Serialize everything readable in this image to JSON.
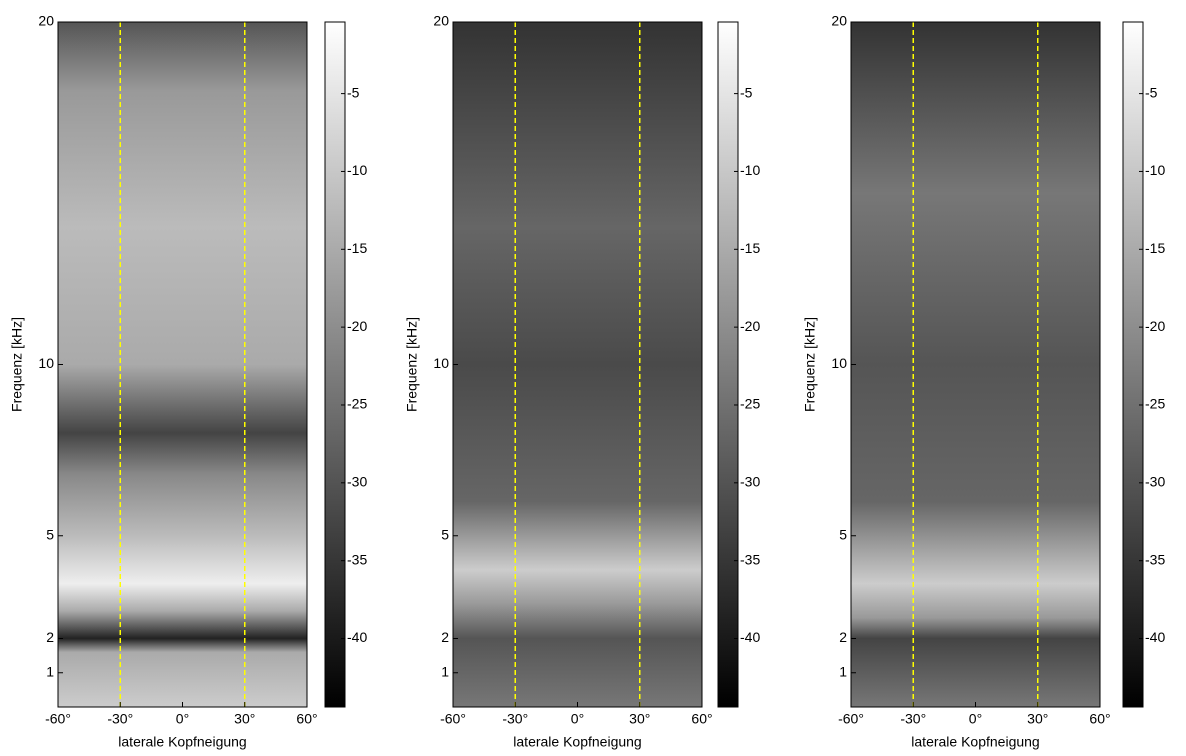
{
  "chart_data": [
    {
      "type": "heatmap",
      "x_label": "laterale Kopfneigung",
      "y_label": "Frequenz [kHz]",
      "xlim": [
        -60,
        60
      ],
      "xticks": [
        {
          "value": -60,
          "label": "-60°"
        },
        {
          "value": -30,
          "label": "-30°"
        },
        {
          "value": 0,
          "label": "0°"
        },
        {
          "value": 30,
          "label": "30°"
        },
        {
          "value": 60,
          "label": "60°"
        }
      ],
      "ylim": [
        0,
        20
      ],
      "yticks": [
        1,
        2,
        5,
        10,
        20
      ],
      "markers": [
        -30,
        30
      ],
      "marker_color": "#ffff00",
      "colorbar": {
        "clim": [
          -44.4,
          -0.4
        ],
        "ticks": [
          -5,
          -10,
          -15,
          -20,
          -25,
          -30,
          -35,
          -40
        ],
        "colormap": "gray"
      }
    },
    {
      "type": "heatmap",
      "x_label": "laterale Kopfneigung",
      "y_label": "Frequenz [kHz]",
      "xlim": [
        -60,
        60
      ],
      "xticks": [
        {
          "value": -60,
          "label": "-60°"
        },
        {
          "value": -30,
          "label": "-30°"
        },
        {
          "value": 0,
          "label": "0°"
        },
        {
          "value": 30,
          "label": "30°"
        },
        {
          "value": 60,
          "label": "60°"
        }
      ],
      "ylim": [
        0,
        20
      ],
      "yticks": [
        1,
        2,
        5,
        10,
        20
      ],
      "markers": [
        -30,
        30
      ],
      "marker_color": "#ffff00",
      "colorbar": {
        "clim": [
          -44.4,
          -0.4
        ],
        "ticks": [
          -5,
          -10,
          -15,
          -20,
          -25,
          -30,
          -35,
          -40
        ],
        "colormap": "gray"
      }
    },
    {
      "type": "heatmap",
      "x_label": "laterale Kopfneigung",
      "y_label": "Frequenz [kHz]",
      "xlim": [
        -60,
        60
      ],
      "xticks": [
        {
          "value": -60,
          "label": "-60°"
        },
        {
          "value": -30,
          "label": "-30°"
        },
        {
          "value": 0,
          "label": "0°"
        },
        {
          "value": 30,
          "label": "30°"
        },
        {
          "value": 60,
          "label": "60°"
        }
      ],
      "ylim": [
        0,
        20
      ],
      "yticks": [
        1,
        2,
        5,
        10,
        20
      ],
      "markers": [
        -30,
        30
      ],
      "marker_color": "#ffff00",
      "colorbar": {
        "clim": [
          -44.4,
          -0.4
        ],
        "ticks": [
          -5,
          -10,
          -15,
          -20,
          -25,
          -30,
          -35,
          -40
        ],
        "colormap": "gray"
      }
    }
  ]
}
